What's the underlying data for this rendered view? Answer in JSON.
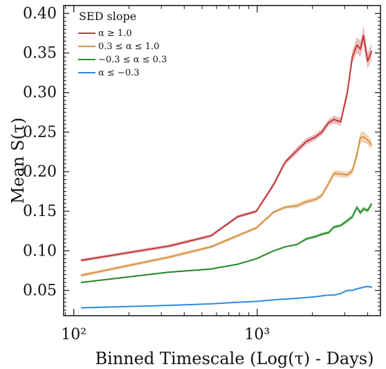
{
  "chart_data": {
    "type": "line",
    "title": "",
    "xlabel": "Binned Timescale (Log(τ) - Days)",
    "ylabel": "Mean S(τ)",
    "x_scale": "log",
    "x_tick_labels": [
      "10²",
      "10³"
    ],
    "y_tick_labels": [
      "0.05",
      "0.10",
      "0.15",
      "0.20",
      "0.25",
      "0.30",
      "0.35",
      "0.40"
    ],
    "legend": {
      "title": "SED slope",
      "placement": "top-left"
    },
    "xlim": [
      88,
      4700
    ],
    "ylim": [
      0.018,
      0.41
    ],
    "grid": false,
    "series": [
      {
        "name": "α ≥ 1.0",
        "color": "#c0393b",
        "band_color": "#e6a5a5",
        "x": [
          110,
          330,
          560,
          780,
          990,
          1230,
          1420,
          1650,
          1850,
          2080,
          2250,
          2450,
          2620,
          2850,
          3100,
          3300,
          3500,
          3650,
          3800,
          4000,
          4200
        ],
        "y": [
          0.088,
          0.106,
          0.119,
          0.143,
          0.15,
          0.184,
          0.212,
          0.227,
          0.238,
          0.244,
          0.25,
          0.262,
          0.266,
          0.263,
          0.3,
          0.345,
          0.36,
          0.355,
          0.372,
          0.34,
          0.352
        ],
        "band": [
          0.002,
          0.002,
          0.002,
          0.002,
          0.002,
          0.003,
          0.003,
          0.004,
          0.004,
          0.004,
          0.004,
          0.004,
          0.005,
          0.005,
          0.006,
          0.008,
          0.01,
          0.01,
          0.012,
          0.01,
          0.01
        ]
      },
      {
        "name": "0.3 ≤ α ≤ 1.0",
        "color": "#d79448",
        "band_color": "#ecc8a2",
        "x": [
          110,
          330,
          560,
          780,
          990,
          1230,
          1420,
          1650,
          1850,
          2080,
          2250,
          2450,
          2620,
          2850,
          3100,
          3300,
          3500,
          3650,
          3800,
          4000,
          4200
        ],
        "y": [
          0.069,
          0.092,
          0.105,
          0.119,
          0.129,
          0.149,
          0.155,
          0.157,
          0.162,
          0.165,
          0.17,
          0.185,
          0.198,
          0.197,
          0.196,
          0.201,
          0.222,
          0.243,
          0.244,
          0.24,
          0.234
        ],
        "band": [
          0.002,
          0.002,
          0.002,
          0.002,
          0.002,
          0.002,
          0.002,
          0.003,
          0.003,
          0.003,
          0.003,
          0.003,
          0.004,
          0.004,
          0.004,
          0.004,
          0.006,
          0.007,
          0.007,
          0.006,
          0.006
        ]
      },
      {
        "name": "−0.3 ≤ α ≤ 0.3",
        "color": "#2a8a2a",
        "band_color": "#9fd29f",
        "x": [
          110,
          330,
          560,
          780,
          990,
          1230,
          1420,
          1650,
          1850,
          2080,
          2250,
          2450,
          2620,
          2850,
          3100,
          3300,
          3500,
          3650,
          3800,
          4000,
          4200
        ],
        "y": [
          0.06,
          0.073,
          0.077,
          0.083,
          0.09,
          0.1,
          0.105,
          0.108,
          0.115,
          0.118,
          0.121,
          0.123,
          0.13,
          0.132,
          0.138,
          0.143,
          0.155,
          0.148,
          0.153,
          0.151,
          0.159
        ],
        "band": [
          0.001,
          0.001,
          0.001,
          0.001,
          0.001,
          0.001,
          0.001,
          0.001,
          0.002,
          0.002,
          0.002,
          0.002,
          0.002,
          0.002,
          0.003,
          0.003,
          0.003,
          0.003,
          0.003,
          0.003,
          0.003
        ]
      },
      {
        "name": "α ≤ −0.3",
        "color": "#2d8be0",
        "band_color": "#a8d0f3",
        "x": [
          110,
          330,
          560,
          780,
          990,
          1230,
          1420,
          1650,
          1850,
          2080,
          2250,
          2450,
          2620,
          2850,
          3100,
          3300,
          3500,
          3650,
          3800,
          4000,
          4200
        ],
        "y": [
          0.028,
          0.031,
          0.033,
          0.035,
          0.036,
          0.038,
          0.039,
          0.04,
          0.041,
          0.042,
          0.043,
          0.044,
          0.044,
          0.046,
          0.05,
          0.05,
          0.052,
          0.053,
          0.054,
          0.055,
          0.054
        ],
        "band": [
          0.0005,
          0.0005,
          0.0005,
          0.0005,
          0.0005,
          0.0005,
          0.0006,
          0.0006,
          0.0006,
          0.0007,
          0.0007,
          0.0007,
          0.0008,
          0.0008,
          0.0009,
          0.0009,
          0.001,
          0.001,
          0.001,
          0.001,
          0.001
        ]
      }
    ]
  }
}
